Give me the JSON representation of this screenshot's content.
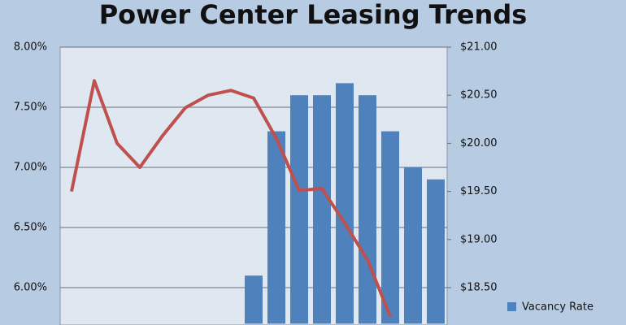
{
  "chart_data": {
    "type": "bar_line",
    "title": "Power Center Leasing Trends",
    "categories": [
      null,
      null,
      null,
      null,
      null,
      null,
      null,
      null,
      null,
      null,
      null,
      null,
      null,
      null,
      null,
      null,
      null
    ],
    "series": [
      {
        "name": "Vacancy Rate",
        "type": "bar",
        "color": "#4f81bd",
        "values": [
          null,
          null,
          null,
          null,
          null,
          null,
          null,
          null,
          6.1,
          7.3,
          7.6,
          7.6,
          7.7,
          7.6,
          7.3,
          7.0,
          6.9
        ]
      },
      {
        "type": "line",
        "axis": "y2",
        "color": "#c0504d",
        "values": [
          19.5,
          20.65,
          20.0,
          19.75,
          20.08,
          20.37,
          20.5,
          20.55,
          20.47,
          20.05,
          19.51,
          19.53,
          19.17,
          18.79,
          18.2,
          null,
          null
        ]
      }
    ],
    "ylim": [
      5.7,
      8.0
    ],
    "yticks": [
      {
        "value": 6.0,
        "label": "6.00%"
      },
      {
        "value": 6.5,
        "label": "6.50%"
      },
      {
        "value": 7.0,
        "label": "7.00%"
      },
      {
        "value": 7.5,
        "label": "7.50%"
      },
      {
        "value": 8.0,
        "label": "8.00%"
      }
    ],
    "y2lim": [
      18.125,
      21.0
    ],
    "y2ticks": [
      {
        "value": 18.5,
        "label": "$18.50"
      },
      {
        "value": 19.0,
        "label": "$19.00"
      },
      {
        "value": 19.5,
        "label": "$19.50"
      },
      {
        "value": 20.0,
        "label": "$20.00"
      },
      {
        "value": 20.5,
        "label": "$20.50"
      },
      {
        "value": 21.0,
        "label": "$21.00"
      }
    ],
    "grid": true,
    "legend": "bottom-right"
  }
}
